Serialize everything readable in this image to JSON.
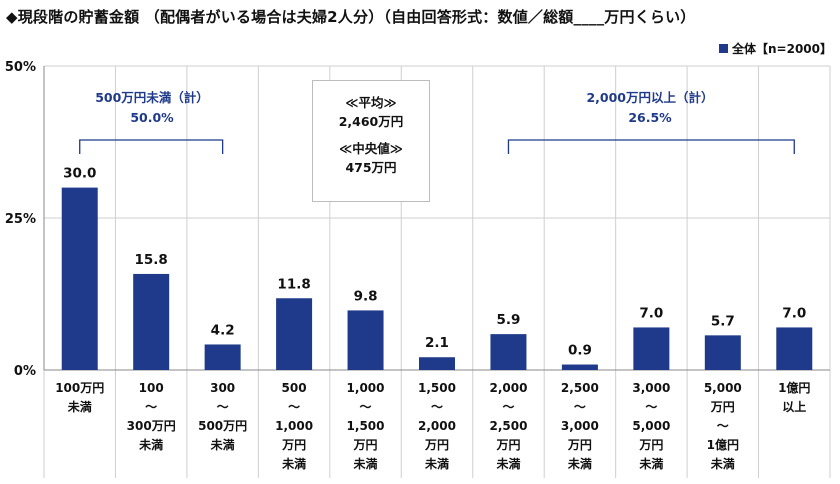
{
  "title": "◆現段階の貯蓄金額 （配偶者がいる場合は夫婦2人分）（自由回答形式：数値／総額____万円くらい）",
  "colors": {
    "bar": "#1f3a8a",
    "annotation": "#1f3a8a",
    "grid": "#cfcfcf"
  },
  "chart_data": {
    "type": "bar",
    "categories": [
      "100万円\n未満",
      "100\n～\n300万円\n未満",
      "300\n～\n500万円\n未満",
      "500\n～\n1,000\n万円\n未満",
      "1,000\n～\n1,500\n万円\n未満",
      "1,500\n～\n2,000\n万円\n未満",
      "2,000\n～\n2,500\n万円\n未満",
      "2,500\n～\n3,000\n万円\n未満",
      "3,000\n～\n5,000\n万円\n未満",
      "5,000\n万円\n～\n1億円\n未満",
      "1億円\n以上"
    ],
    "series": [
      {
        "name": "全体【n=2000】",
        "values": [
          30.0,
          15.8,
          4.2,
          11.8,
          9.8,
          2.1,
          5.9,
          0.9,
          7.0,
          5.7,
          7.0
        ],
        "labels": [
          "30.0",
          "15.8",
          "4.2",
          "11.8",
          "9.8",
          "2.1",
          "5.9",
          "0.9",
          "7.0",
          "5.7",
          "7.0"
        ]
      }
    ],
    "ylim": [
      0,
      50
    ],
    "yticks": [
      "0%",
      "25%",
      "50%"
    ],
    "ytick_values": [
      0,
      25,
      50
    ],
    "legend": "top-right"
  },
  "annotations": {
    "low": {
      "label": "500万円未満（計）",
      "value": "50.0%"
    },
    "high": {
      "label": "2,000万円以上（計）",
      "value": "26.5%"
    },
    "mean_label": "≪平均≫",
    "mean_value": "2,460万円",
    "median_label": "≪中央値≫",
    "median_value": "475万円"
  }
}
